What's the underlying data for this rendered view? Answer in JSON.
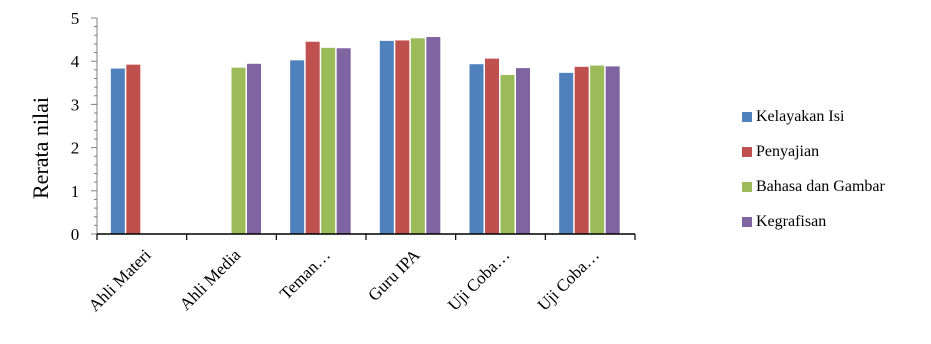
{
  "chart_data": {
    "type": "bar",
    "title": "",
    "xlabel": "",
    "ylabel": "Rerata nilai",
    "ylim": [
      0,
      5
    ],
    "yticks": [
      0,
      1,
      2,
      3,
      4,
      5
    ],
    "grid": false,
    "legend_position": "right",
    "categories": [
      "Ahli Materi",
      "Ahli Media",
      "Teman…",
      "Guru IPA",
      "Uji Coba…",
      "Uji Coba…"
    ],
    "series": [
      {
        "name": "Kelayakan Isi",
        "color": "#4F81BD",
        "values": [
          3.83,
          null,
          4.02,
          4.47,
          3.93,
          3.73
        ]
      },
      {
        "name": "Penyajian",
        "color": "#C0504D",
        "values": [
          3.92,
          null,
          4.45,
          4.48,
          4.06,
          3.87
        ]
      },
      {
        "name": "Bahasa dan Gambar",
        "color": "#9BBB59",
        "values": [
          null,
          3.85,
          4.31,
          4.53,
          3.68,
          3.9
        ]
      },
      {
        "name": "Kegrafisan",
        "color": "#8064A2",
        "values": [
          null,
          3.94,
          4.3,
          4.56,
          3.84,
          3.88
        ]
      }
    ]
  }
}
